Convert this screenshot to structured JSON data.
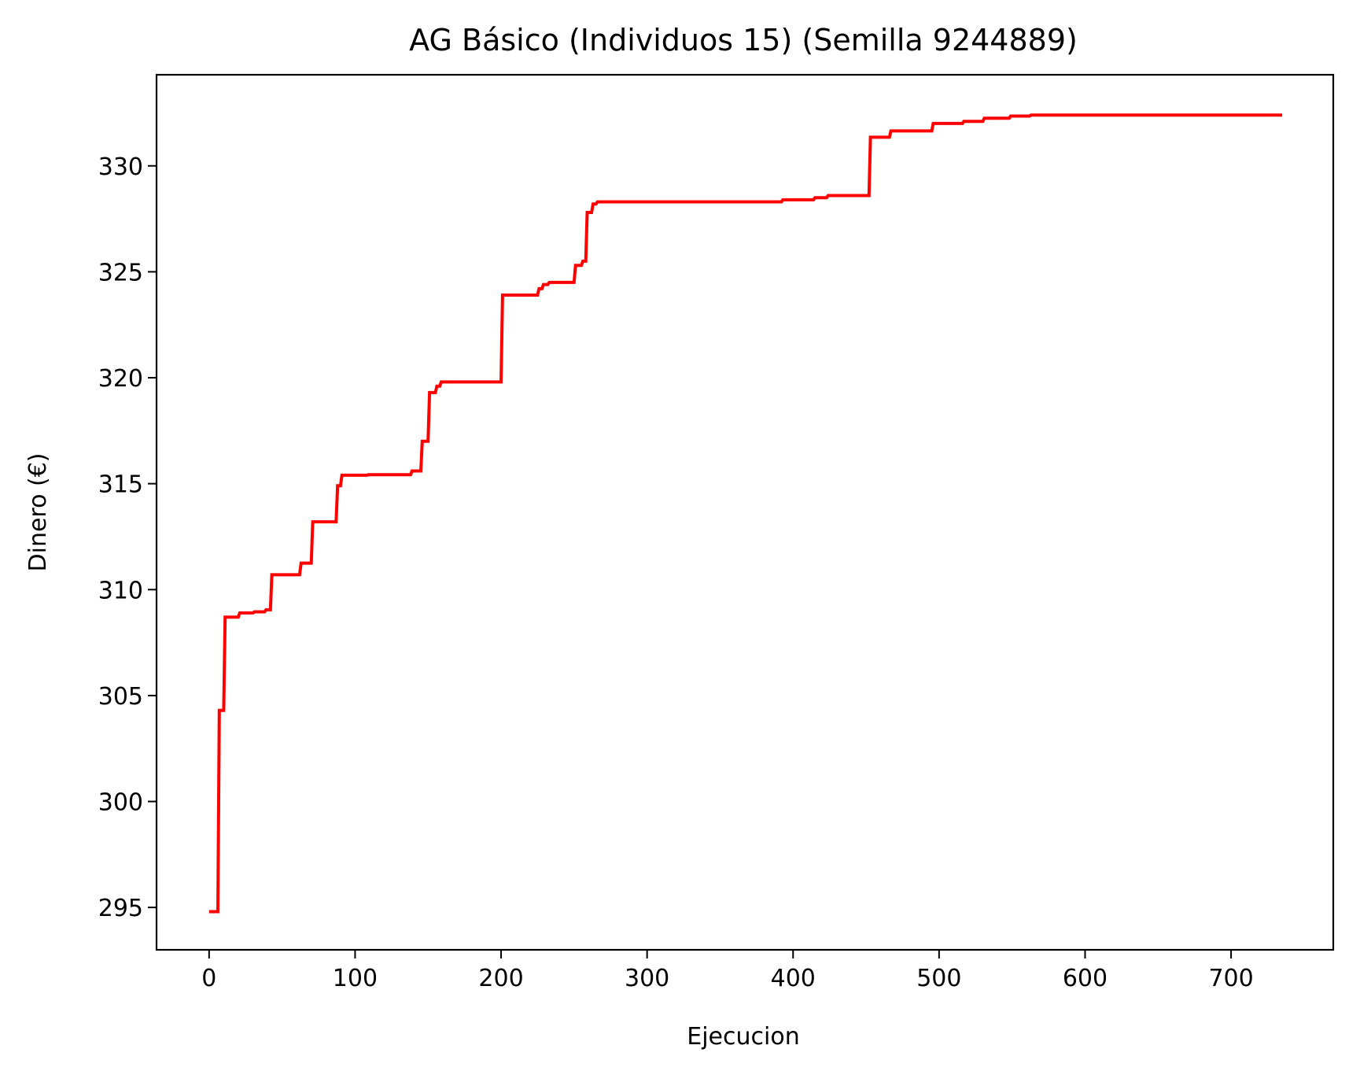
{
  "chart_data": {
    "type": "line",
    "title": "AG Básico (Individuos 15) (Semilla 9244889)",
    "xlabel": "Ejecucion",
    "ylabel": "Dinero (€)",
    "xlim": [
      -36,
      770
    ],
    "ylim": [
      293.0,
      334.3
    ],
    "xticks": [
      0,
      100,
      200,
      300,
      400,
      500,
      600,
      700
    ],
    "yticks": [
      295,
      300,
      305,
      310,
      315,
      320,
      325,
      330
    ],
    "grid": false,
    "legend": "none",
    "series": [
      {
        "name": "AG Básico",
        "color": "#ff0000",
        "x": [
          0,
          6,
          7,
          10,
          11,
          20,
          21,
          30,
          31,
          38,
          39,
          42,
          43,
          62,
          63,
          70,
          71,
          87,
          88,
          90,
          91,
          108,
          109,
          138,
          139,
          145,
          146,
          150,
          151,
          155,
          156,
          158,
          159,
          200,
          201,
          225,
          226,
          228,
          229,
          232,
          233,
          250,
          251,
          255,
          256,
          258,
          259,
          262,
          263,
          265,
          266,
          392,
          393,
          414,
          415,
          423,
          424,
          452,
          453,
          466,
          467,
          495,
          496,
          516,
          517,
          530,
          531,
          548,
          549,
          562,
          563,
          735
        ],
        "y": [
          294.8,
          294.8,
          304.3,
          304.3,
          308.7,
          308.7,
          308.9,
          308.9,
          308.95,
          308.95,
          309.05,
          309.05,
          310.7,
          310.7,
          311.25,
          311.25,
          313.2,
          313.2,
          314.9,
          314.9,
          315.4,
          315.4,
          315.42,
          315.42,
          315.6,
          315.6,
          317.0,
          317.0,
          319.3,
          319.3,
          319.6,
          319.6,
          319.8,
          319.8,
          323.9,
          323.9,
          324.2,
          324.2,
          324.4,
          324.4,
          324.5,
          324.5,
          325.3,
          325.3,
          325.5,
          325.5,
          327.8,
          327.8,
          328.2,
          328.2,
          328.3,
          328.3,
          328.4,
          328.4,
          328.5,
          328.5,
          328.6,
          328.6,
          331.35,
          331.35,
          331.65,
          331.65,
          332.0,
          332.0,
          332.1,
          332.1,
          332.25,
          332.25,
          332.35,
          332.35,
          332.4,
          332.4
        ]
      }
    ]
  }
}
